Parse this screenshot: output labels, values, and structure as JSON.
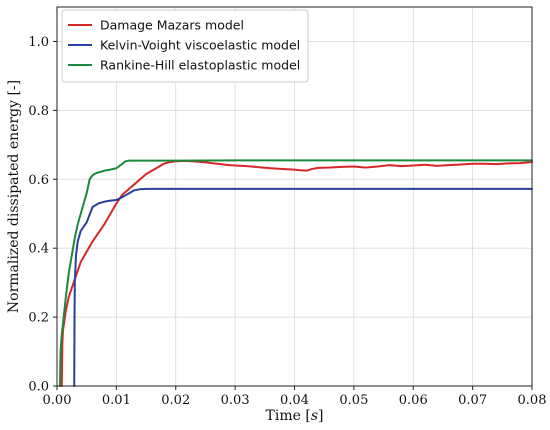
{
  "chart_data": {
    "type": "line",
    "xlabel": "Time [",
    "xlabel_unit": "s",
    "xlabel_close": "]",
    "ylabel": "Normalized dissipated energy [-]",
    "xlim": [
      0.0,
      0.08
    ],
    "ylim": [
      0.0,
      1.1
    ],
    "xticks": [
      "0.00",
      "0.01",
      "0.02",
      "0.03",
      "0.04",
      "0.05",
      "0.06",
      "0.07",
      "0.08"
    ],
    "yticks": [
      "0.0",
      "0.2",
      "0.4",
      "0.6",
      "0.8",
      "1.0"
    ],
    "grid": true,
    "legend_position": "top-left",
    "series": [
      {
        "name": "Damage Mazars model",
        "color": "#d62728",
        "x": [
          0.0008,
          0.0009,
          0.001,
          0.0015,
          0.002,
          0.003,
          0.004,
          0.005,
          0.006,
          0.007,
          0.008,
          0.009,
          0.01,
          0.011,
          0.012,
          0.013,
          0.014,
          0.015,
          0.016,
          0.017,
          0.018,
          0.019,
          0.02,
          0.021,
          0.022,
          0.023,
          0.024,
          0.025,
          0.026,
          0.027,
          0.028,
          0.029,
          0.03,
          0.032,
          0.034,
          0.036,
          0.038,
          0.04,
          0.041,
          0.042,
          0.043,
          0.044,
          0.046,
          0.048,
          0.05,
          0.052,
          0.054,
          0.056,
          0.058,
          0.06,
          0.062,
          0.064,
          0.066,
          0.068,
          0.07,
          0.072,
          0.074,
          0.076,
          0.078,
          0.08
        ],
        "y": [
          0.0,
          0.12,
          0.16,
          0.22,
          0.26,
          0.31,
          0.36,
          0.39,
          0.42,
          0.445,
          0.47,
          0.5,
          0.53,
          0.555,
          0.57,
          0.585,
          0.6,
          0.615,
          0.625,
          0.635,
          0.645,
          0.65,
          0.652,
          0.653,
          0.653,
          0.652,
          0.651,
          0.649,
          0.647,
          0.645,
          0.643,
          0.641,
          0.64,
          0.638,
          0.635,
          0.632,
          0.63,
          0.628,
          0.626,
          0.625,
          0.63,
          0.633,
          0.634,
          0.636,
          0.637,
          0.634,
          0.637,
          0.641,
          0.638,
          0.64,
          0.642,
          0.639,
          0.641,
          0.643,
          0.645,
          0.645,
          0.644,
          0.646,
          0.647,
          0.65
        ]
      },
      {
        "name": "Kelvin-Voight viscoelastic model",
        "color": "#2b3f9e",
        "x": [
          0.0029,
          0.00295,
          0.003,
          0.0032,
          0.0035,
          0.004,
          0.005,
          0.006,
          0.007,
          0.008,
          0.009,
          0.01,
          0.011,
          0.012,
          0.013,
          0.014,
          0.015,
          0.02,
          0.03,
          0.04,
          0.05,
          0.06,
          0.07,
          0.08
        ],
        "y": [
          0.0,
          0.2,
          0.3,
          0.38,
          0.42,
          0.45,
          0.475,
          0.52,
          0.53,
          0.535,
          0.538,
          0.54,
          0.548,
          0.558,
          0.568,
          0.571,
          0.572,
          0.572,
          0.572,
          0.572,
          0.572,
          0.572,
          0.572,
          0.572
        ]
      },
      {
        "name": "Rankine-Hill elastoplastic model",
        "color": "#1a8a3a",
        "x": [
          0.0005,
          0.0006,
          0.0008,
          0.001,
          0.0015,
          0.002,
          0.0025,
          0.003,
          0.0035,
          0.004,
          0.0045,
          0.005,
          0.0055,
          0.006,
          0.0065,
          0.007,
          0.008,
          0.009,
          0.01,
          0.011,
          0.0115,
          0.012,
          0.015,
          0.02,
          0.03,
          0.04,
          0.05,
          0.06,
          0.07,
          0.08
        ],
        "y": [
          0.0,
          0.1,
          0.15,
          0.18,
          0.26,
          0.33,
          0.38,
          0.43,
          0.47,
          0.5,
          0.53,
          0.56,
          0.6,
          0.612,
          0.617,
          0.62,
          0.625,
          0.628,
          0.632,
          0.645,
          0.652,
          0.654,
          0.654,
          0.654,
          0.655,
          0.655,
          0.655,
          0.655,
          0.655,
          0.655
        ]
      }
    ]
  }
}
